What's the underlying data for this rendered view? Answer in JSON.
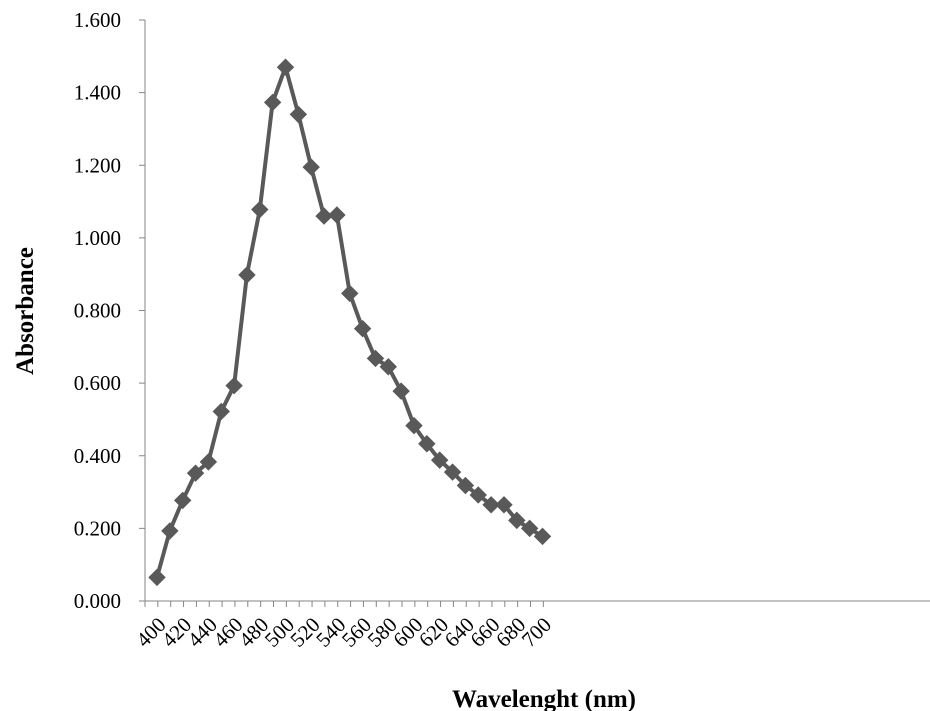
{
  "chart_data": {
    "type": "line",
    "title": "",
    "xlabel": "Wavelenght (nm)",
    "ylabel": "Absorbance",
    "xlim": [
      400,
      700
    ],
    "ylim": [
      0,
      1.6
    ],
    "grid": false,
    "legend": "none",
    "x_tick_labels": [
      "400",
      "420",
      "440",
      "460",
      "480",
      "500",
      "520",
      "540",
      "560",
      "580",
      "600",
      "620",
      "640",
      "660",
      "680",
      "700"
    ],
    "y_tick_labels": [
      "0.000",
      "0.200",
      "0.400",
      "0.600",
      "0.800",
      "1.000",
      "1.200",
      "1.400",
      "1.600"
    ],
    "series": [
      {
        "color": "#595959",
        "marker": "diamond",
        "x": [
          400,
          410,
          420,
          430,
          440,
          450,
          460,
          470,
          480,
          490,
          500,
          510,
          520,
          530,
          540,
          550,
          560,
          570,
          580,
          590,
          600,
          610,
          620,
          630,
          640,
          650,
          660,
          670,
          680,
          690,
          700
        ],
        "y": [
          0.065,
          0.193,
          0.277,
          0.352,
          0.383,
          0.522,
          0.593,
          0.898,
          1.078,
          1.373,
          1.47,
          1.34,
          1.195,
          1.06,
          1.063,
          0.847,
          0.75,
          0.668,
          0.645,
          0.578,
          0.483,
          0.433,
          0.388,
          0.355,
          0.318,
          0.292,
          0.265,
          0.265,
          0.222,
          0.2,
          0.178
        ]
      }
    ]
  }
}
